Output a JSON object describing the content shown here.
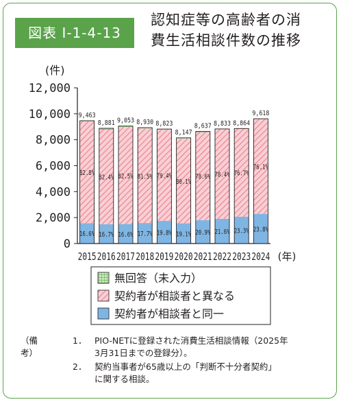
{
  "figure": {
    "badge": "図表 I-1-4-13",
    "title_line1": "認知症等の高齢者の消",
    "title_line2": "費生活相談件数の推移"
  },
  "chart_data": {
    "type": "bar",
    "stacked": true,
    "y_unit": "(件)",
    "x_unit": "(年)",
    "ylim": [
      0,
      12000
    ],
    "yticks": [
      0,
      2000,
      4000,
      6000,
      8000,
      10000,
      12000
    ],
    "ytick_labels": [
      "0",
      "2,000",
      "4,000",
      "6,000",
      "8,000",
      "10,000",
      "12,000"
    ],
    "categories": [
      "2015",
      "2016",
      "2017",
      "2018",
      "2019",
      "2020",
      "2021",
      "2022",
      "2023",
      "2024"
    ],
    "totals": [
      9463,
      8881,
      9053,
      8930,
      8823,
      8147,
      8637,
      8833,
      8864,
      9618
    ],
    "total_labels": [
      "9,463",
      "8,881",
      "9,053",
      "8,930",
      "8,823",
      "8,147",
      "8,637",
      "8,833",
      "8,864",
      "9,618"
    ],
    "series": [
      {
        "name": "契約者が相談者と同一",
        "color": "#7fb5e3",
        "share_percent": [
          16.6,
          16.7,
          16.6,
          17.7,
          19.8,
          19.1,
          20.9,
          21.6,
          23.3,
          23.8
        ],
        "labels": [
          "16.6%",
          "16.7%",
          "16.6%",
          "17.7%",
          "19.8%",
          "19.1%",
          "20.9%",
          "21.6%",
          "23.3%",
          "23.8%"
        ]
      },
      {
        "name": "契約者が相談者と異なる",
        "color": "#f5b3bb",
        "share_percent": [
          82.8,
          82.4,
          82.5,
          81.5,
          79.4,
          80.1,
          78.6,
          78.4,
          76.7,
          76.1
        ],
        "labels": [
          "82.8%",
          "82.4%",
          "82.5%",
          "81.5%",
          "79.4%",
          "80.1%",
          "78.6%",
          "78.4%",
          "76.7%",
          "76.1%"
        ]
      },
      {
        "name": "無回答（未入力）",
        "color": "#9fd08e",
        "share_percent": [
          0.6,
          0.9,
          0.9,
          0.8,
          0.8,
          0.8,
          0.5,
          0.0,
          0.0,
          0.1
        ],
        "labels": []
      }
    ],
    "legend_order": [
      2,
      1,
      0
    ],
    "legend_placement": "bottom"
  },
  "notes": {
    "label": "（備考）",
    "items": [
      {
        "num": "1．",
        "line1": "PIO-NETに登録された消費生活相談情報（2025年",
        "line2": "3月31日までの登録分）。"
      },
      {
        "num": "2．",
        "line1": "契約当事者が65歳以上の「判断不十分者契約」",
        "line2": "に関する相談。"
      }
    ]
  }
}
